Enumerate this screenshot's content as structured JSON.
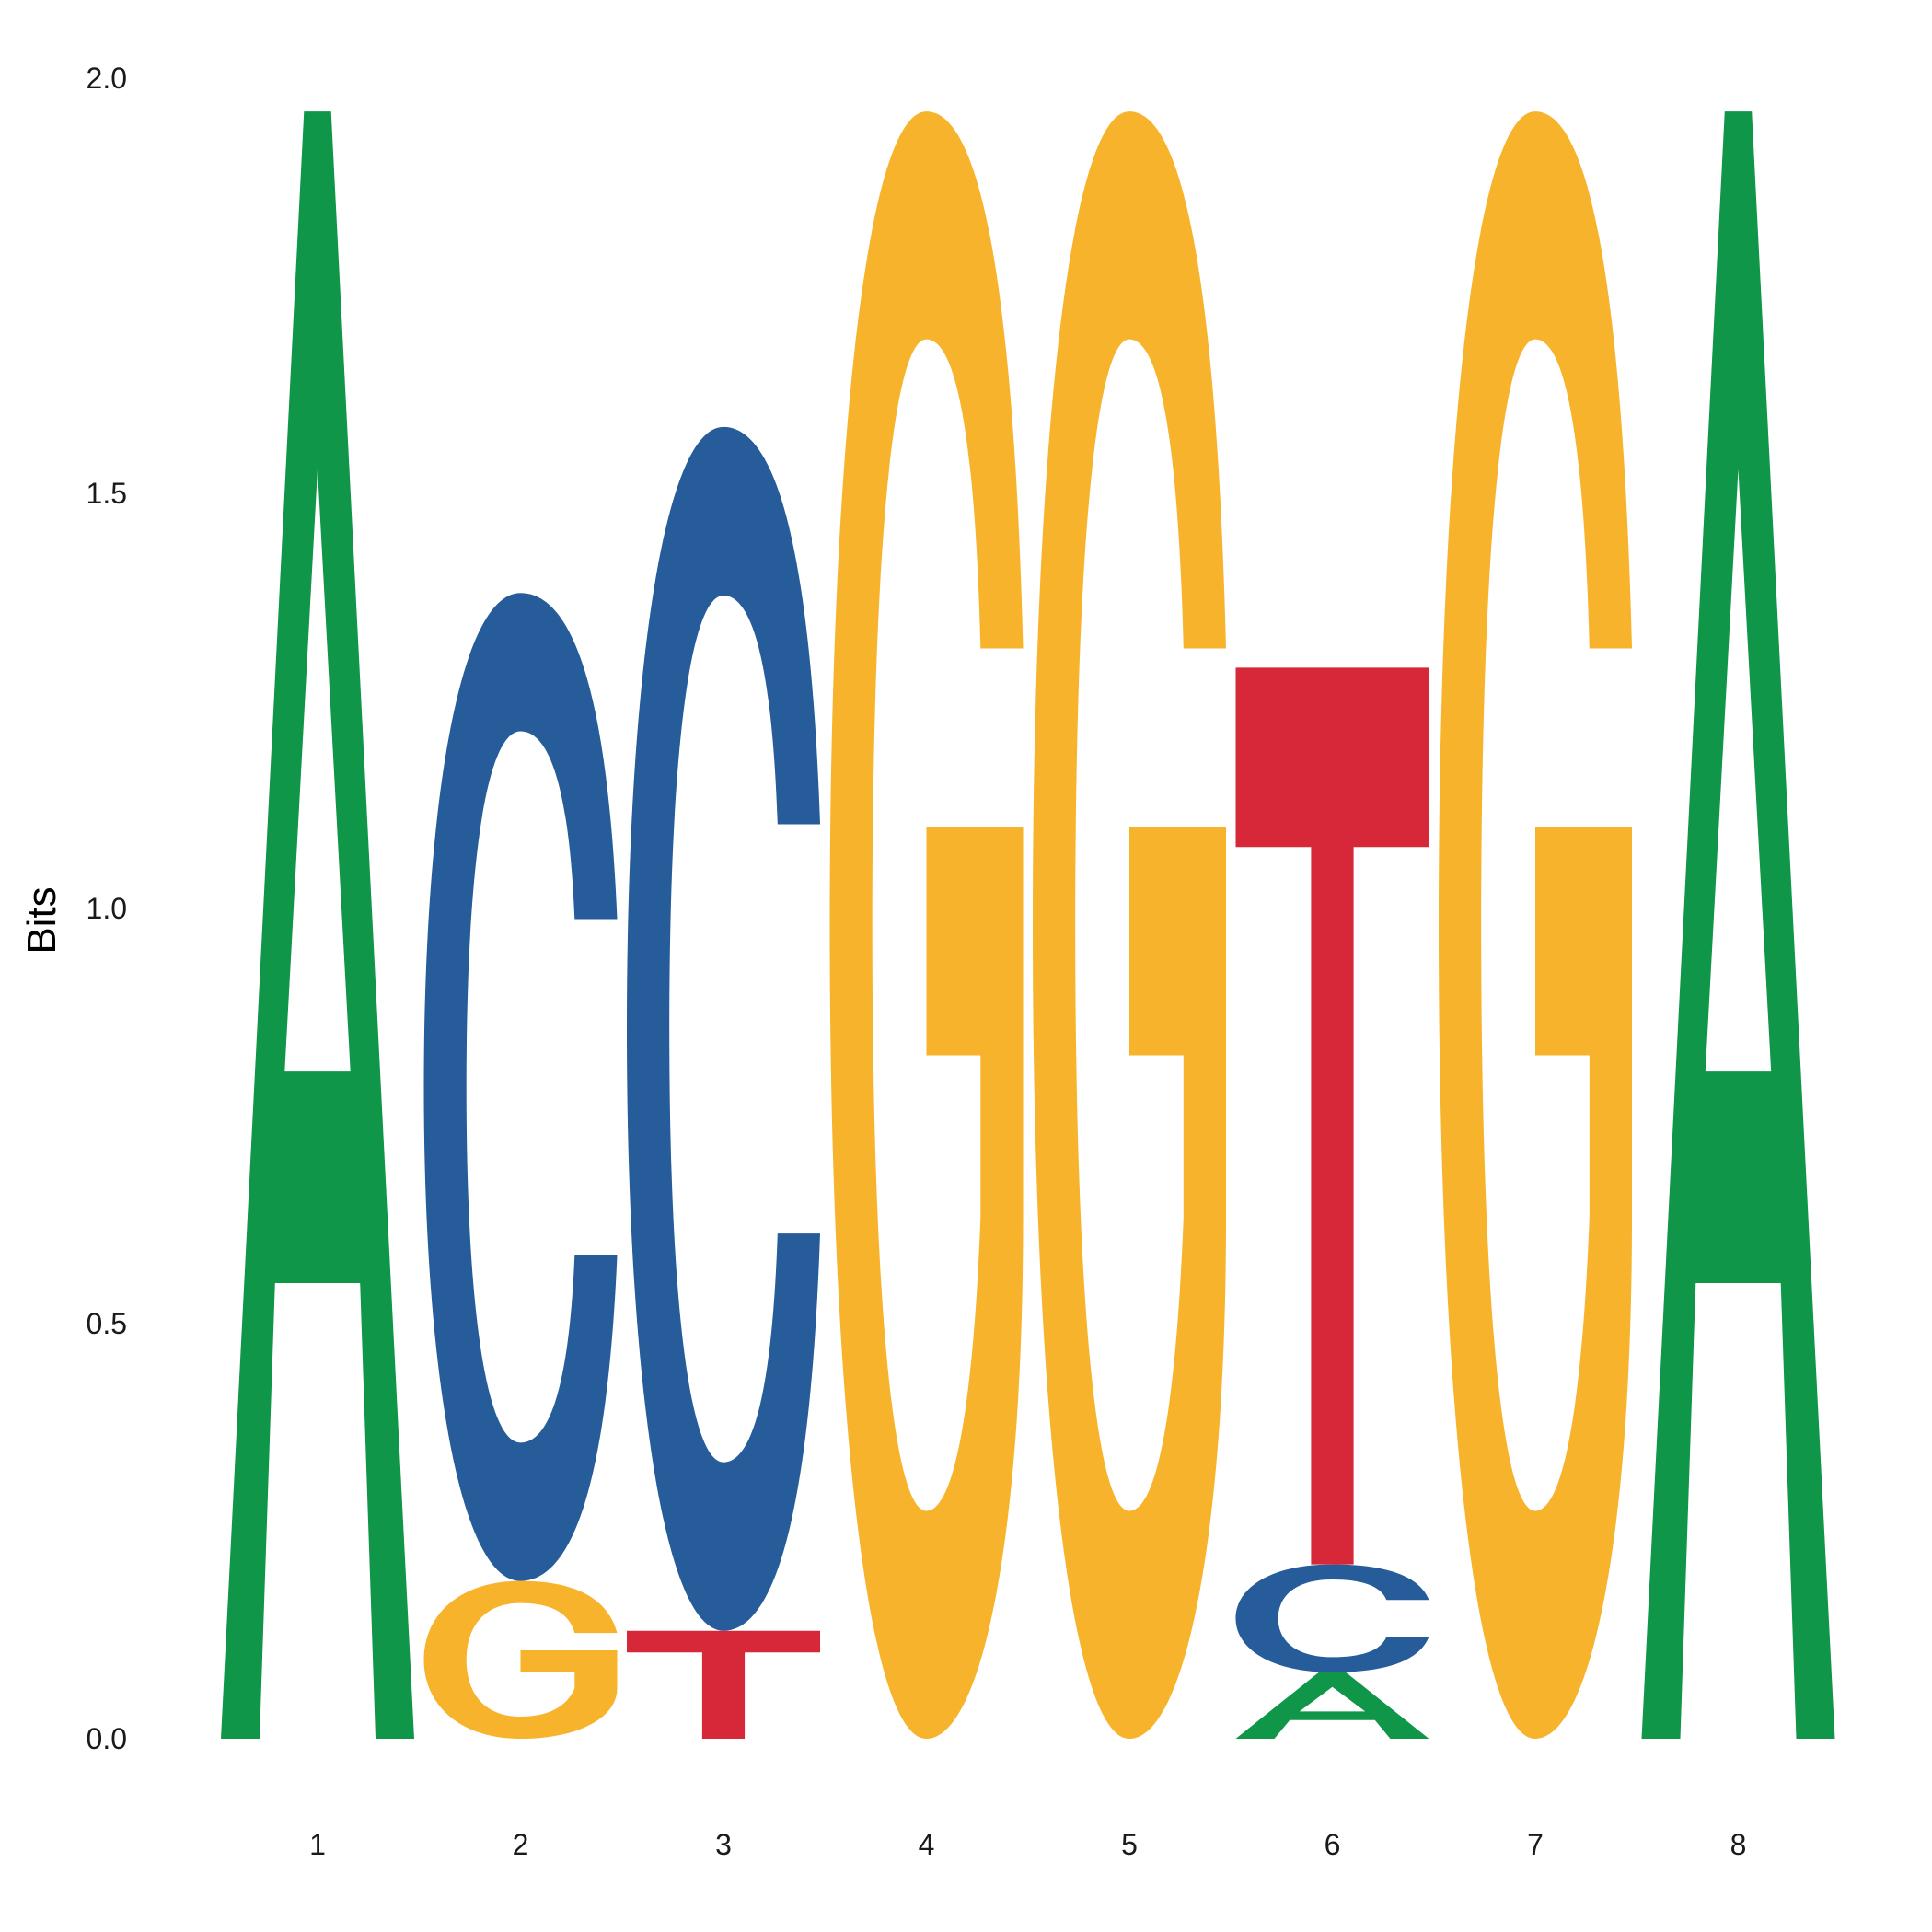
{
  "chart_data": {
    "type": "sequence-logo",
    "title": "",
    "xlabel": "",
    "ylabel": "Bits",
    "ylim": [
      0,
      2
    ],
    "y_ticks": [
      "0.0",
      "0.5",
      "1.0",
      "1.5",
      "2.0"
    ],
    "positions": [
      "1",
      "2",
      "3",
      "4",
      "5",
      "6",
      "7",
      "8"
    ],
    "grid": false,
    "legend": "none",
    "colors": {
      "A": "#109648",
      "C": "#255c99",
      "G": "#f7b32b",
      "T": "#d62839"
    },
    "letter_stacks": [
      [
        {
          "base": "A",
          "bits": 1.96
        }
      ],
      [
        {
          "base": "G",
          "bits": 0.19
        },
        {
          "base": "C",
          "bits": 1.19
        }
      ],
      [
        {
          "base": "T",
          "bits": 0.13
        },
        {
          "base": "C",
          "bits": 1.45
        }
      ],
      [
        {
          "base": "G",
          "bits": 1.96
        }
      ],
      [
        {
          "base": "G",
          "bits": 1.96
        }
      ],
      [
        {
          "base": "A",
          "bits": 0.08
        },
        {
          "base": "C",
          "bits": 0.13
        },
        {
          "base": "T",
          "bits": 1.08
        }
      ],
      [
        {
          "base": "G",
          "bits": 1.96
        }
      ],
      [
        {
          "base": "A",
          "bits": 1.96
        }
      ]
    ]
  }
}
